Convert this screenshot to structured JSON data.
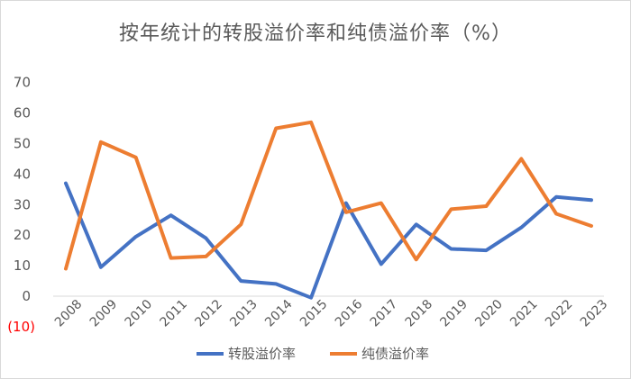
{
  "chart_data": {
    "type": "line",
    "title": "按年统计的转股溢价率和纯债溢价率（%）",
    "categories": [
      "2008",
      "2009",
      "2010",
      "2011",
      "2012",
      "2013",
      "2014",
      "2015",
      "2016",
      "2017",
      "2018",
      "2019",
      "2020",
      "2021",
      "2022",
      "2023"
    ],
    "series": [
      {
        "name": "转股溢价率",
        "color": "#4472c4",
        "values": [
          37,
          9.5,
          19.5,
          26.5,
          19,
          5,
          4,
          -0.5,
          30.5,
          10.5,
          23.5,
          15.5,
          15,
          22.5,
          32.5,
          31.5
        ]
      },
      {
        "name": "纯债溢价率",
        "color": "#ed7d31",
        "values": [
          9,
          50.5,
          45.5,
          12.5,
          13,
          23.5,
          55,
          57,
          27.5,
          30.5,
          12,
          28.5,
          29.5,
          45,
          27,
          23
        ]
      }
    ],
    "yticks": [
      "(10)",
      "0",
      "10",
      "20",
      "30",
      "40",
      "50",
      "60",
      "70"
    ],
    "ytick_values": [
      -10,
      0,
      10,
      20,
      30,
      40,
      50,
      60,
      70
    ],
    "ylim": [
      -10,
      70
    ],
    "grid": false,
    "legend_position": "bottom"
  }
}
